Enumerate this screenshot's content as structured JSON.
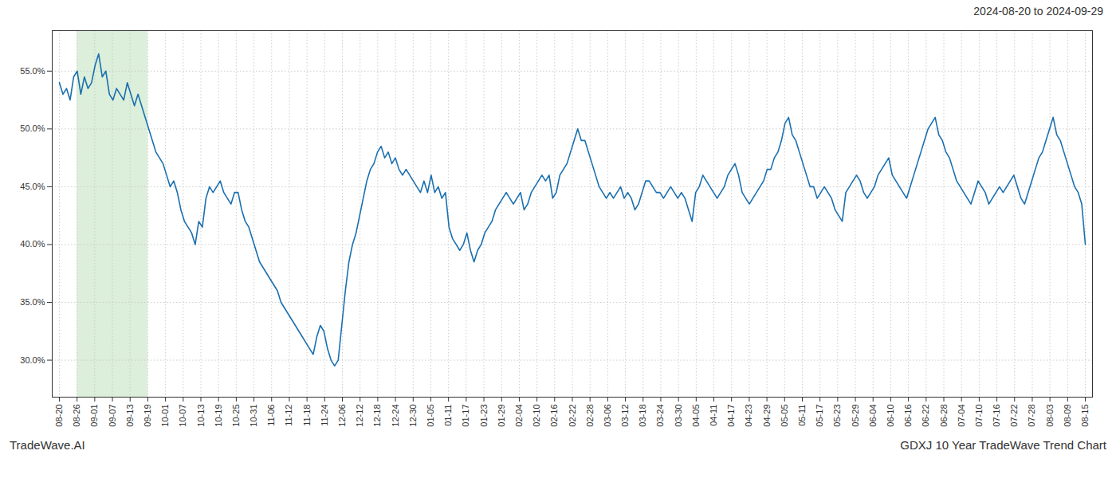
{
  "chart_data": {
    "type": "line",
    "title": "2024-08-20 to 2024-09-29",
    "annotations": [
      "TradeWave.AI",
      "GDXJ 10 Year TradeWave Trend Chart"
    ],
    "color": "#1a6faf",
    "grid": true,
    "line_style": "solid",
    "highlight": {
      "x": [
        4.948276,
        24.741379
      ],
      "color": "#d5ecd4"
    },
    "xlim": [
      -2,
      289
    ],
    "ylim": [
      0.268,
      0.585
    ],
    "yticks": [
      {
        "value": 0.3,
        "label": "30.0%"
      },
      {
        "value": 0.35,
        "label": "35.0%"
      },
      {
        "value": 0.4,
        "label": "40.0%"
      },
      {
        "value": 0.45,
        "label": "45.0%"
      },
      {
        "value": 0.5,
        "label": "50.0%"
      },
      {
        "value": 0.55,
        "label": "55.0%"
      }
    ],
    "xticks": [
      {
        "value": 0,
        "label": "08-20"
      },
      {
        "value": 4.948276,
        "label": "08-26"
      },
      {
        "value": 9.896552,
        "label": "09-01"
      },
      {
        "value": 14.844828,
        "label": "09-07"
      },
      {
        "value": 19.793103,
        "label": "09-13"
      },
      {
        "value": 24.741379,
        "label": "09-19"
      },
      {
        "value": 29.689655,
        "label": "10-01"
      },
      {
        "value": 34.637931,
        "label": "10-07"
      },
      {
        "value": 39.586207,
        "label": "10-13"
      },
      {
        "value": 44.534483,
        "label": "10-19"
      },
      {
        "value": 49.482759,
        "label": "10-25"
      },
      {
        "value": 54.431034,
        "label": "10-31"
      },
      {
        "value": 59.37931,
        "label": "11-06"
      },
      {
        "value": 64.327586,
        "label": "11-12"
      },
      {
        "value": 69.275862,
        "label": "11-18"
      },
      {
        "value": 74.224138,
        "label": "11-24"
      },
      {
        "value": 79.172414,
        "label": "12-06"
      },
      {
        "value": 84.12069,
        "label": "12-12"
      },
      {
        "value": 89.068966,
        "label": "12-18"
      },
      {
        "value": 94.017241,
        "label": "12-24"
      },
      {
        "value": 98.965517,
        "label": "12-30"
      },
      {
        "value": 103.913793,
        "label": "01-05"
      },
      {
        "value": 108.862069,
        "label": "01-11"
      },
      {
        "value": 113.810345,
        "label": "01-17"
      },
      {
        "value": 118.758621,
        "label": "01-23"
      },
      {
        "value": 123.706897,
        "label": "01-29"
      },
      {
        "value": 128.655172,
        "label": "02-04"
      },
      {
        "value": 133.603448,
        "label": "02-10"
      },
      {
        "value": 138.551724,
        "label": "02-16"
      },
      {
        "value": 143.5,
        "label": "02-22"
      },
      {
        "value": 148.448276,
        "label": "02-28"
      },
      {
        "value": 153.396552,
        "label": "03-06"
      },
      {
        "value": 158.344828,
        "label": "03-12"
      },
      {
        "value": 163.293103,
        "label": "03-18"
      },
      {
        "value": 168.241379,
        "label": "03-24"
      },
      {
        "value": 173.189655,
        "label": "03-30"
      },
      {
        "value": 178.137931,
        "label": "04-05"
      },
      {
        "value": 183.086207,
        "label": "04-11"
      },
      {
        "value": 188.034483,
        "label": "04-17"
      },
      {
        "value": 192.982759,
        "label": "04-23"
      },
      {
        "value": 197.931034,
        "label": "04-29"
      },
      {
        "value": 202.87931,
        "label": "05-05"
      },
      {
        "value": 207.827586,
        "label": "05-11"
      },
      {
        "value": 212.775862,
        "label": "05-17"
      },
      {
        "value": 217.724138,
        "label": "05-23"
      },
      {
        "value": 222.672414,
        "label": "05-29"
      },
      {
        "value": 227.62069,
        "label": "06-04"
      },
      {
        "value": 232.568966,
        "label": "06-10"
      },
      {
        "value": 237.517241,
        "label": "06-16"
      },
      {
        "value": 242.465517,
        "label": "06-22"
      },
      {
        "value": 247.413793,
        "label": "06-28"
      },
      {
        "value": 252.362069,
        "label": "07-04"
      },
      {
        "value": 257.310345,
        "label": "07-10"
      },
      {
        "value": 262.258621,
        "label": "07-16"
      },
      {
        "value": 267.206897,
        "label": "07-22"
      },
      {
        "value": 272.155172,
        "label": "07-28"
      },
      {
        "value": 277.103448,
        "label": "08-03"
      },
      {
        "value": 282.051724,
        "label": "08-09"
      },
      {
        "value": 287,
        "label": "08-15"
      }
    ],
    "x": [
      0,
      1,
      2,
      3,
      4,
      5,
      6,
      7,
      8,
      9,
      10,
      11,
      12,
      13,
      14,
      15,
      16,
      17,
      18,
      19,
      20,
      21,
      22,
      23,
      24,
      25,
      26,
      27,
      28,
      29,
      30,
      31,
      32,
      33,
      34,
      35,
      36,
      37,
      38,
      39,
      40,
      41,
      42,
      43,
      44,
      45,
      46,
      47,
      48,
      49,
      50,
      51,
      52,
      53,
      54,
      55,
      56,
      57,
      58,
      59,
      60,
      61,
      62,
      63,
      64,
      65,
      66,
      67,
      68,
      69,
      70,
      71,
      72,
      73,
      74,
      75,
      76,
      77,
      78,
      79,
      80,
      81,
      82,
      83,
      84,
      85,
      86,
      87,
      88,
      89,
      90,
      91,
      92,
      93,
      94,
      95,
      96,
      97,
      98,
      99,
      100,
      101,
      102,
      103,
      104,
      105,
      106,
      107,
      108,
      109,
      110,
      111,
      112,
      113,
      114,
      115,
      116,
      117,
      118,
      119,
      120,
      121,
      122,
      123,
      124,
      125,
      126,
      127,
      128,
      129,
      130,
      131,
      132,
      133,
      134,
      135,
      136,
      137,
      138,
      139,
      140,
      141,
      142,
      143,
      144,
      145,
      146,
      147,
      148,
      149,
      150,
      151,
      152,
      153,
      154,
      155,
      156,
      157,
      158,
      159,
      160,
      161,
      162,
      163,
      164,
      165,
      166,
      167,
      168,
      169,
      170,
      171,
      172,
      173,
      174,
      175,
      176,
      177,
      178,
      179,
      180,
      181,
      182,
      183,
      184,
      185,
      186,
      187,
      188,
      189,
      190,
      191,
      192,
      193,
      194,
      195,
      196,
      197,
      198,
      199,
      200,
      201,
      202,
      203,
      204,
      205,
      206,
      207,
      208,
      209,
      210,
      211,
      212,
      213,
      214,
      215,
      216,
      217,
      218,
      219,
      220,
      221,
      222,
      223,
      224,
      225,
      226,
      227,
      228,
      229,
      230,
      231,
      232,
      233,
      234,
      235,
      236,
      237,
      238,
      239,
      240,
      241,
      242,
      243,
      244,
      245,
      246,
      247,
      248,
      249,
      250,
      251,
      252,
      253,
      254,
      255,
      256,
      257,
      258,
      259,
      260,
      261,
      262,
      263,
      264,
      265,
      266,
      267,
      268,
      269,
      270,
      271,
      272,
      273,
      274,
      275,
      276,
      277,
      278,
      279,
      280,
      281,
      282,
      283,
      284,
      285,
      286,
      287
    ],
    "values": [
      0.54,
      0.53,
      0.535,
      0.525,
      0.545,
      0.55,
      0.53,
      0.545,
      0.535,
      0.54,
      0.555,
      0.565,
      0.545,
      0.55,
      0.53,
      0.525,
      0.535,
      0.53,
      0.525,
      0.54,
      0.53,
      0.52,
      0.53,
      0.52,
      0.51,
      0.5,
      0.49,
      0.48,
      0.475,
      0.47,
      0.46,
      0.45,
      0.455,
      0.445,
      0.43,
      0.42,
      0.415,
      0.41,
      0.4,
      0.42,
      0.415,
      0.44,
      0.45,
      0.445,
      0.45,
      0.455,
      0.445,
      0.44,
      0.435,
      0.445,
      0.445,
      0.43,
      0.42,
      0.415,
      0.405,
      0.395,
      0.385,
      0.38,
      0.375,
      0.37,
      0.365,
      0.36,
      0.35,
      0.345,
      0.34,
      0.335,
      0.33,
      0.325,
      0.32,
      0.315,
      0.31,
      0.305,
      0.32,
      0.33,
      0.325,
      0.31,
      0.3,
      0.295,
      0.3,
      0.33,
      0.36,
      0.385,
      0.4,
      0.41,
      0.425,
      0.44,
      0.455,
      0.465,
      0.47,
      0.48,
      0.485,
      0.475,
      0.48,
      0.47,
      0.475,
      0.465,
      0.46,
      0.465,
      0.46,
      0.455,
      0.45,
      0.445,
      0.455,
      0.445,
      0.46,
      0.445,
      0.45,
      0.44,
      0.445,
      0.415,
      0.405,
      0.4,
      0.395,
      0.4,
      0.41,
      0.395,
      0.385,
      0.395,
      0.4,
      0.41,
      0.415,
      0.42,
      0.43,
      0.435,
      0.44,
      0.445,
      0.44,
      0.435,
      0.44,
      0.445,
      0.43,
      0.435,
      0.445,
      0.45,
      0.455,
      0.46,
      0.455,
      0.46,
      0.44,
      0.445,
      0.46,
      0.465,
      0.47,
      0.48,
      0.49,
      0.5,
      0.49,
      0.49,
      0.48,
      0.47,
      0.46,
      0.45,
      0.445,
      0.44,
      0.445,
      0.44,
      0.445,
      0.45,
      0.44,
      0.445,
      0.44,
      0.43,
      0.435,
      0.445,
      0.455,
      0.455,
      0.45,
      0.445,
      0.445,
      0.44,
      0.445,
      0.45,
      0.445,
      0.44,
      0.445,
      0.44,
      0.43,
      0.42,
      0.445,
      0.45,
      0.46,
      0.455,
      0.45,
      0.445,
      0.44,
      0.445,
      0.45,
      0.46,
      0.465,
      0.47,
      0.46,
      0.445,
      0.44,
      0.435,
      0.44,
      0.445,
      0.45,
      0.455,
      0.465,
      0.465,
      0.475,
      0.48,
      0.49,
      0.505,
      0.51,
      0.495,
      0.49,
      0.48,
      0.47,
      0.46,
      0.45,
      0.45,
      0.44,
      0.445,
      0.45,
      0.445,
      0.44,
      0.43,
      0.425,
      0.42,
      0.445,
      0.45,
      0.455,
      0.46,
      0.455,
      0.445,
      0.44,
      0.445,
      0.45,
      0.46,
      0.465,
      0.47,
      0.475,
      0.46,
      0.455,
      0.45,
      0.445,
      0.44,
      0.45,
      0.46,
      0.47,
      0.48,
      0.49,
      0.5,
      0.505,
      0.51,
      0.495,
      0.49,
      0.48,
      0.475,
      0.465,
      0.455,
      0.45,
      0.445,
      0.44,
      0.435,
      0.445,
      0.455,
      0.45,
      0.445,
      0.435,
      0.44,
      0.445,
      0.45,
      0.445,
      0.45,
      0.455,
      0.46,
      0.45,
      0.44,
      0.435,
      0.445,
      0.455,
      0.465,
      0.475,
      0.48,
      0.49,
      0.5,
      0.51,
      0.495,
      0.49,
      0.48,
      0.47,
      0.46,
      0.45,
      0.445,
      0.435,
      0.4
    ]
  }
}
